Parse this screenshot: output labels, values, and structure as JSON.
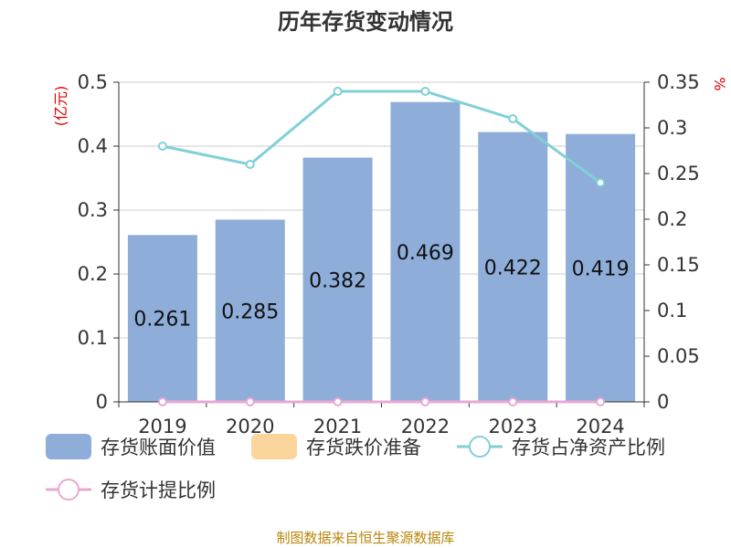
{
  "chart_data": {
    "type": "bar",
    "title": "历年存货变动情况",
    "categories": [
      "2019",
      "2020",
      "2021",
      "2022",
      "2023",
      "2024"
    ],
    "series": [
      {
        "name": "存货账面价值",
        "type": "bar",
        "axis": "left",
        "color": "#8eadd9",
        "values": [
          0.261,
          0.285,
          0.382,
          0.469,
          0.422,
          0.419
        ]
      },
      {
        "name": "存货跌价准备",
        "type": "bar",
        "axis": "left",
        "color": "#fcd59d",
        "values": [
          0,
          0,
          0,
          0,
          0,
          0
        ]
      },
      {
        "name": "存货占净资产比例",
        "type": "line",
        "axis": "right",
        "color": "#80d0d6",
        "values": [
          0.28,
          0.26,
          0.34,
          0.34,
          0.31,
          0.24
        ]
      },
      {
        "name": "存货计提比例",
        "type": "line",
        "axis": "right",
        "color": "#e9a8d2",
        "values": [
          0,
          0,
          0,
          0,
          0,
          0
        ]
      }
    ],
    "y_left": {
      "unit_label": "(亿元)",
      "ylim": [
        0,
        0.5
      ],
      "ticks": [
        "0",
        "0.1",
        "0.2",
        "0.3",
        "0.4",
        "0.5"
      ]
    },
    "y_right": {
      "unit_label": "%",
      "ylim": [
        0,
        0.35
      ],
      "ticks": [
        "0",
        "0.05",
        "0.1",
        "0.15",
        "0.2",
        "0.25",
        "0.3",
        "0.35"
      ]
    },
    "grid": true,
    "legend_position": "bottom"
  },
  "source_note": "制图数据来自恒生聚源数据库"
}
